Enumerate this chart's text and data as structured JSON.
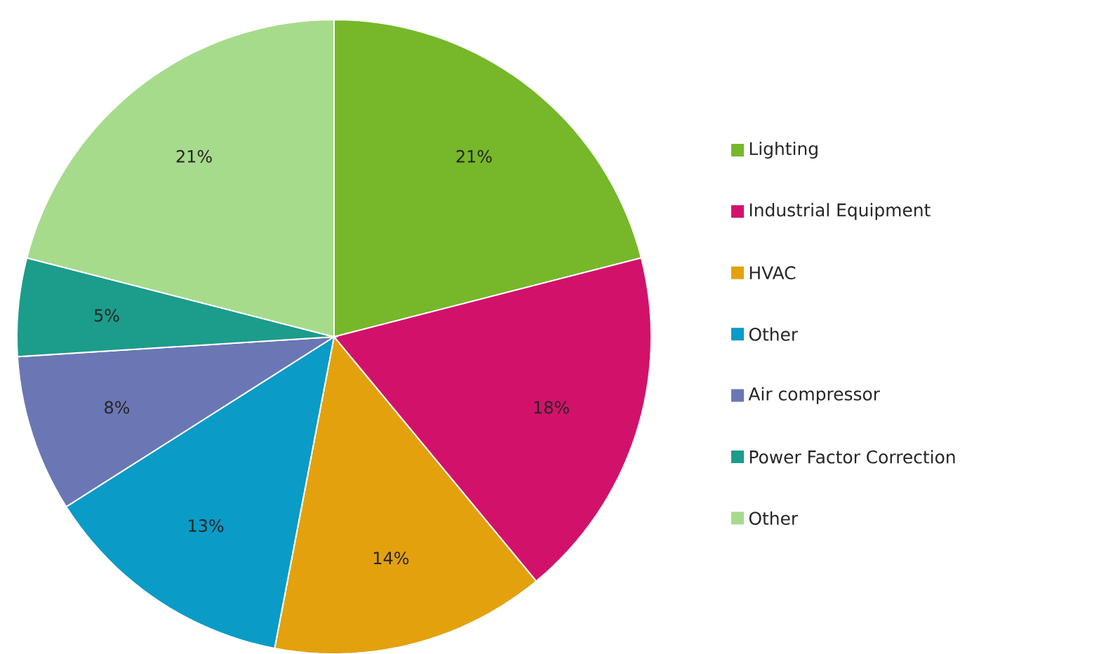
{
  "chart_data": {
    "type": "pie",
    "categories": [
      "Lighting",
      "Industrial Equipment",
      "HVAC",
      "Other",
      "Air compressor",
      "Power Factor Correction",
      "Other"
    ],
    "values": [
      21,
      18,
      14,
      13,
      8,
      5,
      21
    ],
    "value_labels": [
      "21%",
      "18%",
      "14%",
      "13%",
      "8%",
      "5%",
      "21%"
    ],
    "colors": [
      "#76b82a",
      "#d2126a",
      "#e3a10e",
      "#0a9bc7",
      "#6a77b4",
      "#1c9c8b",
      "#a6db8c"
    ],
    "legend": "right"
  }
}
